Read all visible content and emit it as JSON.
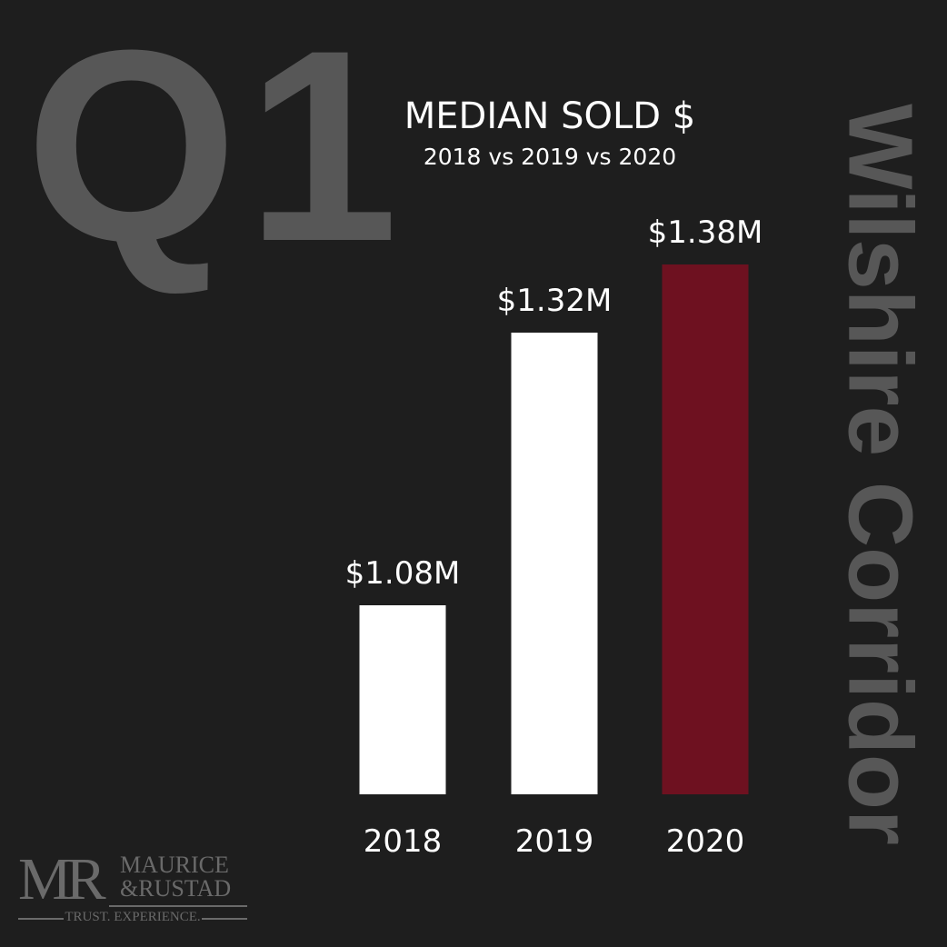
{
  "header": {
    "quarter": "Q1",
    "side_title": "Wilshire Corridor"
  },
  "logo": {
    "monogram": "MR",
    "name_line1": "MAURICE",
    "name_line2": "&RUSTAD",
    "tagline": "TRUST. EXPERIENCE."
  },
  "chart_data": {
    "type": "bar",
    "title": "MEDIAN SOLD $",
    "subtitle": "2018 vs 2019 vs 2020",
    "categories": [
      "2018",
      "2019",
      "2020"
    ],
    "values": [
      1.08,
      1.32,
      1.38
    ],
    "value_labels": [
      "$1.08M",
      "$1.32M",
      "$1.38M"
    ],
    "unit": "$M",
    "colors": [
      "#ffffff",
      "#ffffff",
      "#6e1120"
    ],
    "ylim": [
      0.9136,
      1.4424
    ],
    "grid": false,
    "xlabel": "",
    "ylabel": ""
  }
}
